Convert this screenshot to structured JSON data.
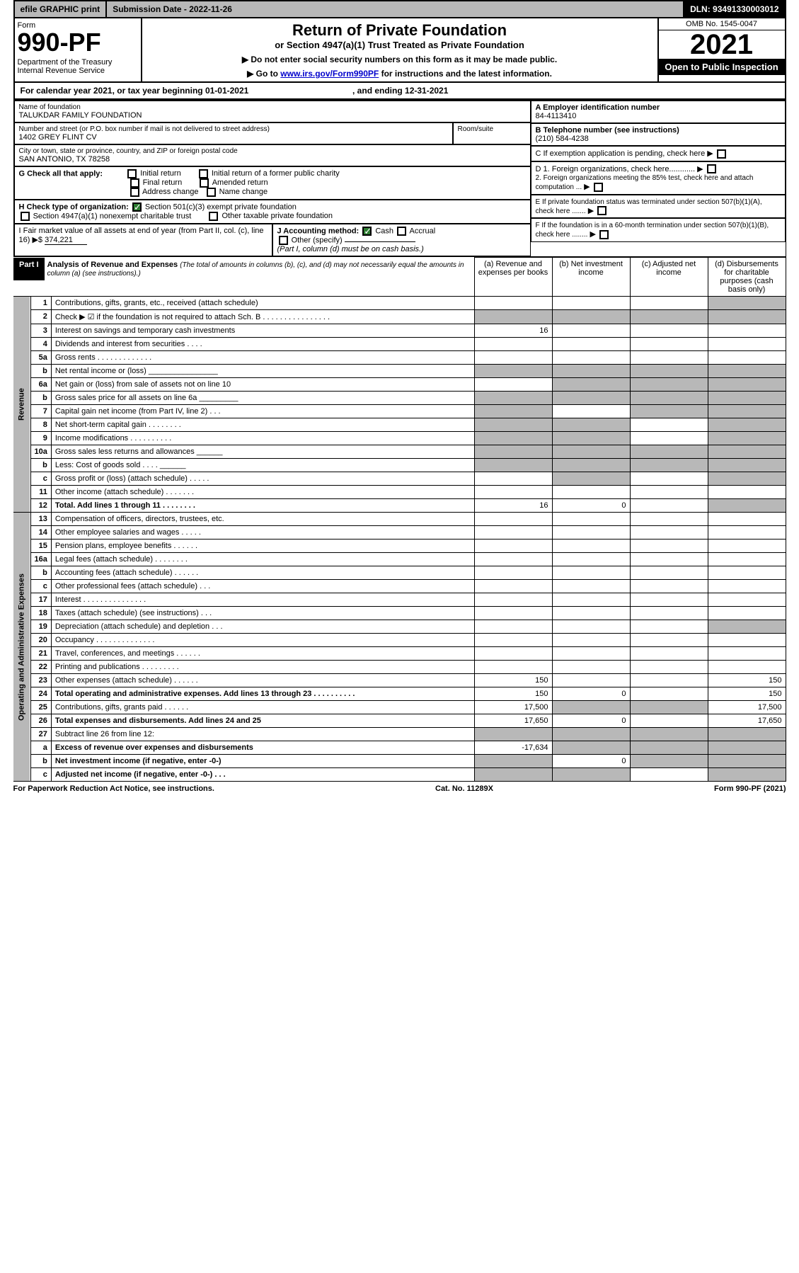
{
  "top": {
    "efile": "efile GRAPHIC print",
    "subdate_label": "Submission Date - 2022-11-26",
    "dln": "DLN: 93491330003012"
  },
  "header": {
    "form_label": "Form",
    "form_number": "990-PF",
    "dept": "Department of the Treasury\nInternal Revenue Service",
    "title": "Return of Private Foundation",
    "subtitle": "or Section 4947(a)(1) Trust Treated as Private Foundation",
    "instr1": "▶ Do not enter social security numbers on this form as it may be made public.",
    "instr2_pre": "▶ Go to ",
    "instr2_link": "www.irs.gov/Form990PF",
    "instr2_post": " for instructions and the latest information.",
    "omb": "OMB No. 1545-0047",
    "year": "2021",
    "inspect": "Open to Public Inspection"
  },
  "cal_year": {
    "pre": "For calendar year 2021, or tax year beginning 01-01-2021",
    "mid": ", and ending 12-31-2021"
  },
  "info": {
    "name_label": "Name of foundation",
    "name": "TALUKDAR FAMILY FOUNDATION",
    "addr_label": "Number and street (or P.O. box number if mail is not delivered to street address)",
    "addr": "1402 GREY FLINT CV",
    "room_label": "Room/suite",
    "city_label": "City or town, state or province, country, and ZIP or foreign postal code",
    "city": "SAN ANTONIO, TX  78258",
    "ein_label": "A Employer identification number",
    "ein": "84-4113410",
    "tel_label": "B Telephone number (see instructions)",
    "tel": "(210) 584-4238",
    "c_label": "C If exemption application is pending, check here",
    "d1_label": "D 1. Foreign organizations, check here............",
    "d2_label": "2. Foreign organizations meeting the 85% test, check here and attach computation ...",
    "e_label": "E  If private foundation status was terminated under section 507(b)(1)(A), check here .......",
    "f_label": "F  If the foundation is in a 60-month termination under section 507(b)(1)(B), check here ........"
  },
  "g": {
    "label": "G Check all that apply:",
    "opts": [
      "Initial return",
      "Final return",
      "Address change",
      "Initial return of a former public charity",
      "Amended return",
      "Name change"
    ]
  },
  "h": {
    "label": "H Check type of organization:",
    "opt1": "Section 501(c)(3) exempt private foundation",
    "opt2": "Section 4947(a)(1) nonexempt charitable trust",
    "opt3": "Other taxable private foundation"
  },
  "i": {
    "label": "I Fair market value of all assets at end of year (from Part II, col. (c), line 16) ▶$",
    "value": "374,221"
  },
  "j": {
    "label": "J Accounting method:",
    "cash": "Cash",
    "accrual": "Accrual",
    "other": "Other (specify)",
    "note": "(Part I, column (d) must be on cash basis.)"
  },
  "part1": {
    "label": "Part I",
    "title": "Analysis of Revenue and Expenses",
    "note": "(The total of amounts in columns (b), (c), and (d) may not necessarily equal the amounts in column (a) (see instructions).)",
    "cols": {
      "a": "(a) Revenue and expenses per books",
      "b": "(b) Net investment income",
      "c": "(c) Adjusted net income",
      "d": "(d) Disbursements for charitable purposes (cash basis only)"
    }
  },
  "section_labels": {
    "revenue": "Revenue",
    "expenses": "Operating and Administrative Expenses"
  },
  "rows": [
    {
      "n": "1",
      "t": "Contributions, gifts, grants, etc., received (attach schedule)",
      "a": "",
      "shade_d": true
    },
    {
      "n": "2",
      "t": "Check ▶ ☑ if the foundation is not required to attach Sch. B   .  .  .  .  .  .  .  .  .  .  .  .  .  .  .  .",
      "shade_all": true
    },
    {
      "n": "3",
      "t": "Interest on savings and temporary cash investments",
      "a": "16"
    },
    {
      "n": "4",
      "t": "Dividends and interest from securities   .  .  .  ."
    },
    {
      "n": "5a",
      "t": "Gross rents    .  .  .  .  .  .  .  .  .  .  .  .  ."
    },
    {
      "n": "b",
      "t": "Net rental income or (loss)  ________________",
      "shade_all": true
    },
    {
      "n": "6a",
      "t": "Net gain or (loss) from sale of assets not on line 10",
      "shade_bcd": true
    },
    {
      "n": "b",
      "t": "Gross sales price for all assets on line 6a _________",
      "shade_all": true
    },
    {
      "n": "7",
      "t": "Capital gain net income (from Part IV, line 2)   .  .  .",
      "shade_a": true,
      "shade_cd": true
    },
    {
      "n": "8",
      "t": "Net short-term capital gain  .  .  .  .  .  .  .  .",
      "shade_ab": true,
      "shade_d": true
    },
    {
      "n": "9",
      "t": "Income modifications  .  .  .  .  .  .  .  .  .  .",
      "shade_ab": true,
      "shade_d": true
    },
    {
      "n": "10a",
      "t": "Gross sales less returns and allowances  ______",
      "shade_all": true
    },
    {
      "n": "b",
      "t": "Less: Cost of goods sold    .  .  .  .  ______",
      "shade_all": true
    },
    {
      "n": "c",
      "t": "Gross profit or (loss) (attach schedule)   .  .  .  .  .",
      "shade_b": true,
      "shade_d": true
    },
    {
      "n": "11",
      "t": "Other income (attach schedule)   .  .  .  .  .  .  ."
    },
    {
      "n": "12",
      "t": "Total. Add lines 1 through 11  .  .  .  .  .  .  .  .",
      "bold": true,
      "a": "16",
      "b": "0",
      "shade_d": true
    },
    {
      "n": "13",
      "t": "Compensation of officers, directors, trustees, etc."
    },
    {
      "n": "14",
      "t": "Other employee salaries and wages   .  .  .  .  ."
    },
    {
      "n": "15",
      "t": "Pension plans, employee benefits  .  .  .  .  .  ."
    },
    {
      "n": "16a",
      "t": "Legal fees (attach schedule)  .  .  .  .  .  .  .  ."
    },
    {
      "n": "b",
      "t": "Accounting fees (attach schedule)  .  .  .  .  .  ."
    },
    {
      "n": "c",
      "t": "Other professional fees (attach schedule)   .  .  ."
    },
    {
      "n": "17",
      "t": "Interest  .  .  .  .  .  .  .  .  .  .  .  .  .  .  ."
    },
    {
      "n": "18",
      "t": "Taxes (attach schedule) (see instructions)   .  .  ."
    },
    {
      "n": "19",
      "t": "Depreciation (attach schedule) and depletion   .  .  .",
      "shade_d": true
    },
    {
      "n": "20",
      "t": "Occupancy  .  .  .  .  .  .  .  .  .  .  .  .  .  ."
    },
    {
      "n": "21",
      "t": "Travel, conferences, and meetings  .  .  .  .  .  ."
    },
    {
      "n": "22",
      "t": "Printing and publications  .  .  .  .  .  .  .  .  ."
    },
    {
      "n": "23",
      "t": "Other expenses (attach schedule)  .  .  .  .  .  .",
      "a": "150",
      "d": "150"
    },
    {
      "n": "24",
      "t": "Total operating and administrative expenses. Add lines 13 through 23  .  .  .  .  .  .  .  .  .  .",
      "bold": true,
      "a": "150",
      "b": "0",
      "d": "150"
    },
    {
      "n": "25",
      "t": "Contributions, gifts, grants paid    .  .  .  .  .  .",
      "a": "17,500",
      "shade_bc": true,
      "d": "17,500"
    },
    {
      "n": "26",
      "t": "Total expenses and disbursements. Add lines 24 and 25",
      "bold": true,
      "a": "17,650",
      "b": "0",
      "d": "17,650"
    },
    {
      "n": "27",
      "t": "Subtract line 26 from line 12:",
      "shade_all": true
    },
    {
      "n": "a",
      "t": "Excess of revenue over expenses and disbursements",
      "bold": true,
      "a": "-17,634",
      "shade_bcd": true
    },
    {
      "n": "b",
      "t": "Net investment income (if negative, enter -0-)",
      "bold": true,
      "shade_a": true,
      "b": "0",
      "shade_cd": true
    },
    {
      "n": "c",
      "t": "Adjusted net income (if negative, enter -0-)   .  .  .",
      "bold": true,
      "shade_ab": true,
      "shade_d": true
    }
  ],
  "footer": {
    "left": "For Paperwork Reduction Act Notice, see instructions.",
    "mid": "Cat. No. 11289X",
    "right": "Form 990-PF (2021)"
  }
}
